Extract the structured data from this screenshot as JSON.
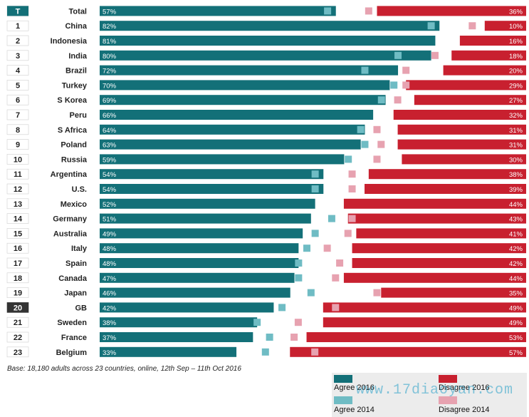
{
  "colors": {
    "agree_2016": "#137078",
    "agree_2014": "#6fbcc4",
    "disagree_2016": "#c8202f",
    "disagree_2014": "#e7a2b0",
    "rank_badge": "#137078",
    "rank_badge_highlight": "#333333"
  },
  "chart_data": {
    "type": "bar",
    "orientation": "horizontal-diverging",
    "xlim": [
      0,
      100
    ],
    "rows": [
      {
        "rank": "T",
        "country": "Total",
        "agree_2016": 57,
        "agree_2014": 55,
        "disagree_2016": 36,
        "disagree_2014": 38
      },
      {
        "rank": "1",
        "country": "China",
        "agree_2016": 82,
        "agree_2014": 80,
        "disagree_2016": 10,
        "disagree_2014": 13
      },
      {
        "rank": "2",
        "country": "Indonesia",
        "agree_2016": 81,
        "agree_2014": null,
        "disagree_2016": 16,
        "disagree_2014": null
      },
      {
        "rank": "3",
        "country": "India",
        "agree_2016": 80,
        "agree_2014": 72,
        "disagree_2016": 18,
        "disagree_2014": 22
      },
      {
        "rank": "4",
        "country": "Brazil",
        "agree_2016": 72,
        "agree_2014": 64,
        "disagree_2016": 20,
        "disagree_2014": 29
      },
      {
        "rank": "5",
        "country": "Turkey",
        "agree_2016": 70,
        "agree_2014": 71,
        "disagree_2016": 29,
        "disagree_2014": 29
      },
      {
        "rank": "6",
        "country": "S Korea",
        "agree_2016": 69,
        "agree_2014": 68,
        "disagree_2016": 27,
        "disagree_2014": 31
      },
      {
        "rank": "7",
        "country": "Peru",
        "agree_2016": 66,
        "agree_2014": null,
        "disagree_2016": 32,
        "disagree_2014": null
      },
      {
        "rank": "8",
        "country": "S Africa",
        "agree_2016": 64,
        "agree_2014": 63,
        "disagree_2016": 31,
        "disagree_2014": 36
      },
      {
        "rank": "9",
        "country": "Poland",
        "agree_2016": 63,
        "agree_2014": 64,
        "disagree_2016": 31,
        "disagree_2014": 35
      },
      {
        "rank": "10",
        "country": "Russia",
        "agree_2016": 59,
        "agree_2014": 60,
        "disagree_2016": 30,
        "disagree_2014": 36
      },
      {
        "rank": "11",
        "country": "Argentina",
        "agree_2016": 54,
        "agree_2014": 52,
        "disagree_2016": 38,
        "disagree_2014": 42
      },
      {
        "rank": "12",
        "country": "U.S.",
        "agree_2016": 54,
        "agree_2014": 52,
        "disagree_2016": 39,
        "disagree_2014": 42
      },
      {
        "rank": "13",
        "country": "Mexico",
        "agree_2016": 52,
        "agree_2014": null,
        "disagree_2016": 44,
        "disagree_2014": null
      },
      {
        "rank": "14",
        "country": "Germany",
        "agree_2016": 51,
        "agree_2014": 56,
        "disagree_2016": 43,
        "disagree_2014": 42
      },
      {
        "rank": "15",
        "country": "Australia",
        "agree_2016": 49,
        "agree_2014": 52,
        "disagree_2016": 41,
        "disagree_2014": 43
      },
      {
        "rank": "16",
        "country": "Italy",
        "agree_2016": 48,
        "agree_2014": 50,
        "disagree_2016": 42,
        "disagree_2014": 48
      },
      {
        "rank": "17",
        "country": "Spain",
        "agree_2016": 48,
        "agree_2014": 48,
        "disagree_2016": 42,
        "disagree_2014": 45
      },
      {
        "rank": "18",
        "country": "Canada",
        "agree_2016": 47,
        "agree_2014": 48,
        "disagree_2016": 44,
        "disagree_2014": 46
      },
      {
        "rank": "19",
        "country": "Japan",
        "agree_2016": 46,
        "agree_2014": 51,
        "disagree_2016": 35,
        "disagree_2014": 36
      },
      {
        "rank": "20",
        "country": "GB",
        "agree_2016": 42,
        "agree_2014": 44,
        "disagree_2016": 49,
        "disagree_2014": 46
      },
      {
        "rank": "21",
        "country": "Sweden",
        "agree_2016": 38,
        "agree_2014": 38,
        "disagree_2016": 49,
        "disagree_2014": 55
      },
      {
        "rank": "22",
        "country": "France",
        "agree_2016": 37,
        "agree_2014": 41,
        "disagree_2016": 53,
        "disagree_2014": 56
      },
      {
        "rank": "23",
        "country": "Belgium",
        "agree_2016": 33,
        "agree_2014": 40,
        "disagree_2016": 57,
        "disagree_2014": 51
      }
    ],
    "highlight_rank": "20",
    "legend": [
      {
        "key": "agree_2016",
        "label": "Agree 2016"
      },
      {
        "key": "disagree_2016",
        "label": "Disagree 2016"
      },
      {
        "key": "agree_2014",
        "label": "Agree 2014"
      },
      {
        "key": "disagree_2014",
        "label": "Disagree 2014"
      }
    ],
    "footnote": "Base: 18,180 adults across 23 countries, online, 12th Sep – 11th Oct 2016"
  },
  "watermark": "www.17diaoyan.com"
}
